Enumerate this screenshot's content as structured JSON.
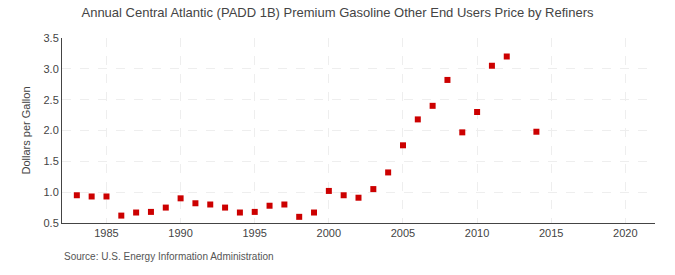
{
  "chart_data": {
    "type": "scatter",
    "title": "Annual Central Atlantic (PADD 1B) Premium Gasoline Other End Users Price by Refiners",
    "ylabel": "Dollars per Gallon",
    "annotations": [
      "Source: U.S. Energy Information Administration"
    ],
    "x": [
      1983,
      1984,
      1985,
      1986,
      1987,
      1988,
      1989,
      1990,
      1991,
      1992,
      1993,
      1994,
      1995,
      1996,
      1997,
      1998,
      1999,
      2000,
      2001,
      2002,
      2003,
      2004,
      2005,
      2006,
      2007,
      2008,
      2009,
      2010,
      2011,
      2012,
      2014
    ],
    "values": [
      0.95,
      0.93,
      0.93,
      0.62,
      0.67,
      0.68,
      0.75,
      0.9,
      0.82,
      0.8,
      0.75,
      0.67,
      0.68,
      0.78,
      0.8,
      0.6,
      0.67,
      1.02,
      0.95,
      0.91,
      1.05,
      1.32,
      1.76,
      2.18,
      2.4,
      2.82,
      1.97,
      2.3,
      3.05,
      3.2,
      1.98
    ],
    "color": "#cc0000",
    "marker": "square",
    "xlim": [
      1982,
      2022
    ],
    "xticks": [
      1985,
      1990,
      1995,
      2000,
      2005,
      2010,
      2015,
      2020
    ],
    "ylim": [
      0.5,
      3.5
    ],
    "yticks": [
      0.5,
      {
        "value": 1,
        "label": "1.0"
      },
      1.5,
      {
        "value": 2,
        "label": "2.0"
      },
      2.5,
      {
        "value": 3,
        "label": "3.0"
      },
      3.5
    ],
    "grid": true
  }
}
